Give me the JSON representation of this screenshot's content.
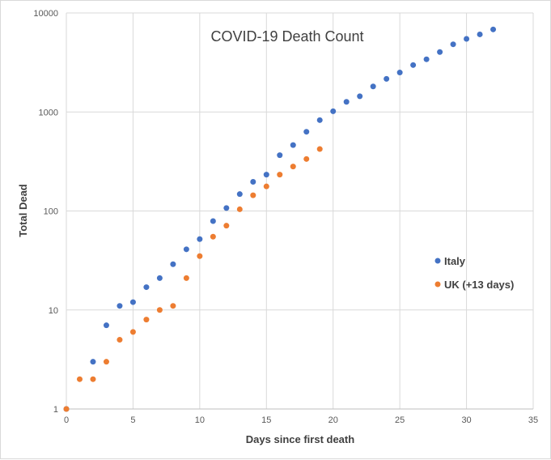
{
  "chart_data": {
    "type": "scatter",
    "title": "COVID-19 Death Count",
    "xlabel": "Days since first death",
    "ylabel": "Total Dead",
    "xlim": [
      0,
      35
    ],
    "ylim": [
      1,
      10000
    ],
    "y_scale": "log",
    "x_ticks": [
      "0",
      "5",
      "10",
      "15",
      "20",
      "25",
      "30",
      "35"
    ],
    "y_ticks": [
      "1",
      "10",
      "100",
      "1000",
      "10000"
    ],
    "grid": true,
    "legend_position": "right",
    "series": [
      {
        "name": "Italy",
        "color": "#4472c4",
        "x": [
          0,
          2,
          3,
          4,
          5,
          6,
          7,
          8,
          9,
          10,
          11,
          12,
          13,
          14,
          15,
          16,
          17,
          18,
          19,
          20,
          21,
          22,
          23,
          24,
          25,
          26,
          27,
          28,
          29,
          30,
          31,
          32
        ],
        "y": [
          1,
          3,
          7,
          11,
          12,
          17,
          21,
          29,
          41,
          52,
          79,
          107,
          148,
          197,
          233,
          366,
          463,
          631,
          827,
          1016,
          1266,
          1441,
          1809,
          2158,
          2503,
          2978,
          3405,
          4032,
          4825,
          5476,
          6077,
          6820
        ]
      },
      {
        "name": "UK (+13 days)",
        "color": "#ed7d31",
        "x": [
          0,
          1,
          2,
          3,
          4,
          5,
          6,
          7,
          8,
          9,
          10,
          11,
          12,
          13,
          14,
          15,
          16,
          17,
          18,
          19
        ],
        "y": [
          1,
          2,
          2,
          3,
          5,
          6,
          8,
          10,
          11,
          21,
          35,
          55,
          71,
          104,
          144,
          177,
          233,
          281,
          335,
          422
        ]
      }
    ]
  }
}
